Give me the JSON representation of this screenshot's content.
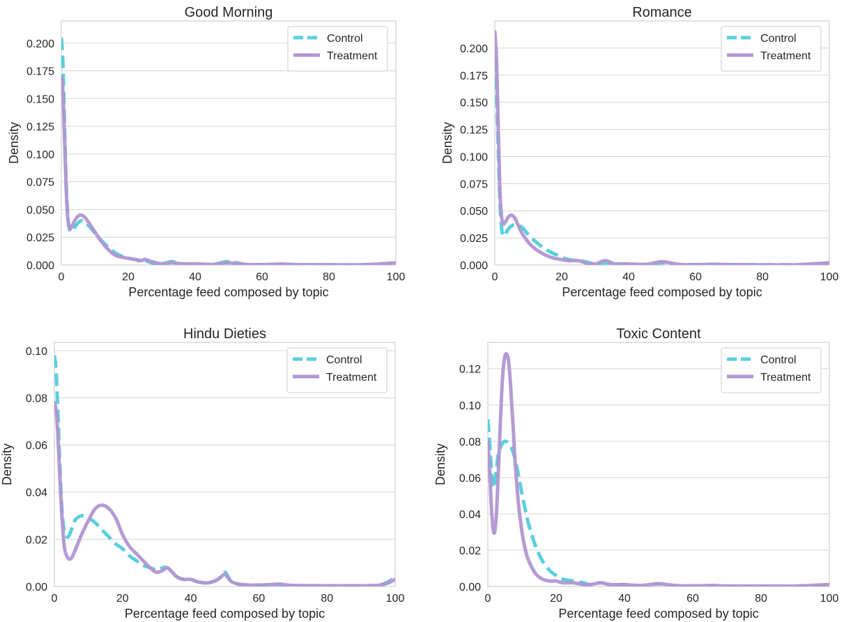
{
  "chart_data": [
    {
      "type": "line",
      "title": "Good Morning",
      "xlabel": "Percentage feed composed by topic",
      "ylabel": "Density",
      "xlim": [
        0,
        100
      ],
      "ylim": [
        0,
        0.22
      ],
      "xticks": [
        0,
        20,
        40,
        60,
        80,
        100
      ],
      "xtick_labels": [
        "0",
        "20",
        "40",
        "60",
        "80",
        "100"
      ],
      "yticks": [
        0,
        0.025,
        0.05,
        0.075,
        0.1,
        0.125,
        0.15,
        0.175,
        0.2
      ],
      "ytick_labels": [
        "0.000",
        "0.025",
        "0.050",
        "0.075",
        "0.100",
        "0.125",
        "0.150",
        "0.175",
        "0.200"
      ],
      "grid": true,
      "legend": "top-right",
      "series": [
        {
          "name": "Control",
          "style": "dashed",
          "color": "#5bcfdc",
          "x": [
            0,
            0.5,
            1,
            1.5,
            2,
            2.5,
            3,
            4,
            5,
            6,
            7,
            8,
            10,
            12,
            14,
            16,
            18,
            20,
            22,
            24,
            25,
            27,
            30,
            33,
            36,
            40,
            45,
            50,
            55,
            60,
            66,
            70,
            80,
            90,
            100
          ],
          "y": [
            0.205,
            0.18,
            0.12,
            0.07,
            0.042,
            0.032,
            0.03,
            0.034,
            0.038,
            0.04,
            0.039,
            0.036,
            0.029,
            0.022,
            0.016,
            0.011,
            0.008,
            0.006,
            0.005,
            0.003,
            0.004,
            0.002,
            0.001,
            0.003,
            0.001,
            0.001,
            0.0005,
            0.003,
            0.0005,
            0.0003,
            0.0008,
            0.0003,
            0.0002,
            0.0002,
            0.0015
          ]
        },
        {
          "name": "Treatment",
          "style": "solid",
          "color": "#b196d1",
          "x": [
            0,
            0.5,
            1,
            1.5,
            2,
            2.5,
            3,
            4,
            5,
            6,
            7,
            8,
            10,
            12,
            14,
            16,
            18,
            20,
            22,
            24,
            25,
            27,
            30,
            33,
            36,
            40,
            45,
            50,
            55,
            60,
            66,
            70,
            80,
            90,
            100
          ],
          "y": [
            0.17,
            0.155,
            0.11,
            0.065,
            0.04,
            0.033,
            0.034,
            0.04,
            0.044,
            0.045,
            0.043,
            0.039,
            0.03,
            0.021,
            0.014,
            0.009,
            0.007,
            0.006,
            0.005,
            0.004,
            0.005,
            0.003,
            0.001,
            0.002,
            0.001,
            0.001,
            0.0005,
            0.002,
            0.0005,
            0.0003,
            0.0008,
            0.0003,
            0.0002,
            0.0002,
            0.002
          ]
        }
      ]
    },
    {
      "type": "line",
      "title": "Romance",
      "xlabel": "Percentage feed composed by topic",
      "ylabel": "Density",
      "xlim": [
        0,
        100
      ],
      "ylim": [
        0,
        0.225
      ],
      "xticks": [
        0,
        20,
        40,
        60,
        80,
        100
      ],
      "xtick_labels": [
        "0",
        "20",
        "40",
        "60",
        "80",
        "100"
      ],
      "yticks": [
        0,
        0.025,
        0.05,
        0.075,
        0.1,
        0.125,
        0.15,
        0.175,
        0.2
      ],
      "ytick_labels": [
        "0.000",
        "0.025",
        "0.050",
        "0.075",
        "0.100",
        "0.125",
        "0.150",
        "0.175",
        "0.200"
      ],
      "grid": true,
      "legend": "top-right",
      "series": [
        {
          "name": "Control",
          "style": "dashed",
          "color": "#5bcfdc",
          "x": [
            0,
            0.5,
            1,
            1.5,
            2,
            2.5,
            3,
            4,
            5,
            6,
            8,
            10,
            12,
            14,
            16,
            18,
            20,
            22,
            25,
            27,
            30,
            33,
            36,
            40,
            45,
            50,
            55,
            60,
            66,
            70,
            80,
            90,
            100
          ],
          "y": [
            0.19,
            0.16,
            0.11,
            0.06,
            0.035,
            0.027,
            0.028,
            0.033,
            0.036,
            0.037,
            0.035,
            0.028,
            0.022,
            0.017,
            0.013,
            0.01,
            0.007,
            0.005,
            0.004,
            0.003,
            0.001,
            0.002,
            0.001,
            0.001,
            0.0005,
            0.002,
            0.0005,
            0.0003,
            0.0006,
            0.0003,
            0.0002,
            0.0002,
            0.001
          ]
        },
        {
          "name": "Treatment",
          "style": "solid",
          "color": "#b196d1",
          "x": [
            0,
            0.5,
            1,
            1.5,
            2,
            2.5,
            3,
            4,
            5,
            6,
            8,
            10,
            12,
            14,
            16,
            18,
            20,
            22,
            25,
            27,
            30,
            33,
            36,
            40,
            45,
            50,
            55,
            60,
            66,
            70,
            80,
            90,
            100
          ],
          "y": [
            0.215,
            0.19,
            0.13,
            0.07,
            0.045,
            0.038,
            0.039,
            0.044,
            0.046,
            0.043,
            0.03,
            0.021,
            0.015,
            0.011,
            0.008,
            0.006,
            0.005,
            0.004,
            0.004,
            0.002,
            0.001,
            0.004,
            0.001,
            0.001,
            0.0005,
            0.003,
            0.0005,
            0.0003,
            0.0006,
            0.0003,
            0.0002,
            0.0002,
            0.002
          ]
        }
      ]
    },
    {
      "type": "line",
      "title": "Hindu Dieties",
      "xlabel": "Percentage feed composed by topic",
      "ylabel": "Density",
      "xlim": [
        0,
        100
      ],
      "ylim": [
        0,
        0.1035
      ],
      "xticks": [
        0,
        20,
        40,
        60,
        80,
        100
      ],
      "xtick_labels": [
        "0",
        "20",
        "40",
        "60",
        "80",
        "100"
      ],
      "yticks": [
        0,
        0.02,
        0.04,
        0.06,
        0.08,
        0.1
      ],
      "ytick_labels": [
        "0.00",
        "0.02",
        "0.04",
        "0.06",
        "0.08",
        "0.10"
      ],
      "grid": true,
      "legend": "top-right",
      "series": [
        {
          "name": "Control",
          "style": "dashed",
          "color": "#5bcfdc",
          "x": [
            0,
            0.5,
            1,
            1.5,
            2,
            2.5,
            3,
            4,
            5,
            6,
            8,
            10,
            12,
            14,
            16,
            18,
            20,
            22,
            24,
            26,
            28,
            30,
            32,
            33,
            34,
            36,
            38,
            40,
            42,
            45,
            48,
            50,
            52,
            55,
            60,
            66,
            70,
            80,
            90,
            95,
            98,
            100
          ],
          "y": [
            0.098,
            0.092,
            0.075,
            0.055,
            0.038,
            0.028,
            0.023,
            0.021,
            0.024,
            0.028,
            0.03,
            0.029,
            0.027,
            0.024,
            0.021,
            0.018,
            0.016,
            0.013,
            0.011,
            0.009,
            0.008,
            0.007,
            0.008,
            0.008,
            0.007,
            0.004,
            0.003,
            0.003,
            0.002,
            0.0015,
            0.003,
            0.006,
            0.002,
            0.0008,
            0.0006,
            0.0008,
            0.0004,
            0.0003,
            0.0003,
            0.0005,
            0.002,
            0.004
          ]
        },
        {
          "name": "Treatment",
          "style": "solid",
          "color": "#b196d1",
          "x": [
            0,
            0.5,
            1,
            1.5,
            2,
            2.5,
            3,
            4,
            5,
            6,
            8,
            10,
            12,
            14,
            16,
            18,
            20,
            22,
            24,
            26,
            28,
            30,
            32,
            33,
            34,
            36,
            38,
            40,
            42,
            45,
            48,
            50,
            52,
            55,
            60,
            66,
            70,
            80,
            90,
            95,
            98,
            100
          ],
          "y": [
            0.078,
            0.075,
            0.065,
            0.05,
            0.035,
            0.024,
            0.016,
            0.012,
            0.012,
            0.015,
            0.022,
            0.028,
            0.033,
            0.0345,
            0.033,
            0.029,
            0.022,
            0.017,
            0.014,
            0.011,
            0.008,
            0.006,
            0.007,
            0.008,
            0.007,
            0.004,
            0.003,
            0.003,
            0.002,
            0.0015,
            0.003,
            0.005,
            0.002,
            0.0008,
            0.0005,
            0.001,
            0.0004,
            0.0003,
            0.0003,
            0.0005,
            0.0015,
            0.003
          ]
        }
      ]
    },
    {
      "type": "line",
      "title": "Toxic Content",
      "xlabel": "Percentage feed composed by topic",
      "ylabel": "Density",
      "xlim": [
        0,
        100
      ],
      "ylim": [
        0,
        0.1345
      ],
      "xticks": [
        0,
        20,
        40,
        60,
        80,
        100
      ],
      "xtick_labels": [
        "0",
        "20",
        "40",
        "60",
        "80",
        "100"
      ],
      "yticks": [
        0,
        0.02,
        0.04,
        0.06,
        0.08,
        0.1,
        0.12
      ],
      "ytick_labels": [
        "0.00",
        "0.02",
        "0.04",
        "0.06",
        "0.08",
        "0.10",
        "0.12"
      ],
      "grid": true,
      "legend": "top-right",
      "series": [
        {
          "name": "Control",
          "style": "dashed",
          "color": "#5bcfdc",
          "x": [
            0,
            0.5,
            1,
            1.5,
            2,
            2.5,
            3,
            4,
            5,
            6,
            7,
            8,
            9,
            10,
            11,
            12,
            14,
            16,
            18,
            20,
            22,
            25,
            28,
            30,
            33,
            36,
            40,
            45,
            50,
            55,
            60,
            66,
            70,
            80,
            90,
            100
          ],
          "y": [
            0.092,
            0.08,
            0.065,
            0.055,
            0.056,
            0.064,
            0.072,
            0.078,
            0.08,
            0.079,
            0.076,
            0.07,
            0.061,
            0.051,
            0.042,
            0.034,
            0.022,
            0.014,
            0.009,
            0.006,
            0.004,
            0.003,
            0.002,
            0.001,
            0.002,
            0.001,
            0.001,
            0.0005,
            0.0015,
            0.0005,
            0.0003,
            0.0005,
            0.0002,
            0.0002,
            0.0002,
            0.001
          ]
        },
        {
          "name": "Treatment",
          "style": "solid",
          "color": "#b196d1",
          "x": [
            0,
            0.5,
            1,
            1.5,
            2,
            2.5,
            3,
            3.5,
            4,
            4.5,
            5,
            5.5,
            6,
            6.5,
            7,
            7.5,
            8,
            9,
            10,
            11,
            12,
            14,
            16,
            18,
            20,
            22,
            25,
            28,
            30,
            33,
            36,
            40,
            45,
            50,
            55,
            60,
            66,
            70,
            80,
            90,
            100
          ],
          "y": [
            0.08,
            0.065,
            0.045,
            0.032,
            0.03,
            0.04,
            0.06,
            0.083,
            0.105,
            0.12,
            0.127,
            0.128,
            0.125,
            0.115,
            0.1,
            0.085,
            0.068,
            0.045,
            0.03,
            0.02,
            0.014,
            0.007,
            0.004,
            0.003,
            0.003,
            0.002,
            0.002,
            0.001,
            0.001,
            0.002,
            0.001,
            0.001,
            0.0005,
            0.0015,
            0.0005,
            0.0003,
            0.0005,
            0.0002,
            0.0002,
            0.0002,
            0.001
          ]
        }
      ]
    }
  ],
  "colors": {
    "control": "#5bcfdc",
    "treatment": "#b196d1",
    "grid": "#d5d5d5",
    "frame": "#cfcfcf",
    "text": "#262626"
  }
}
